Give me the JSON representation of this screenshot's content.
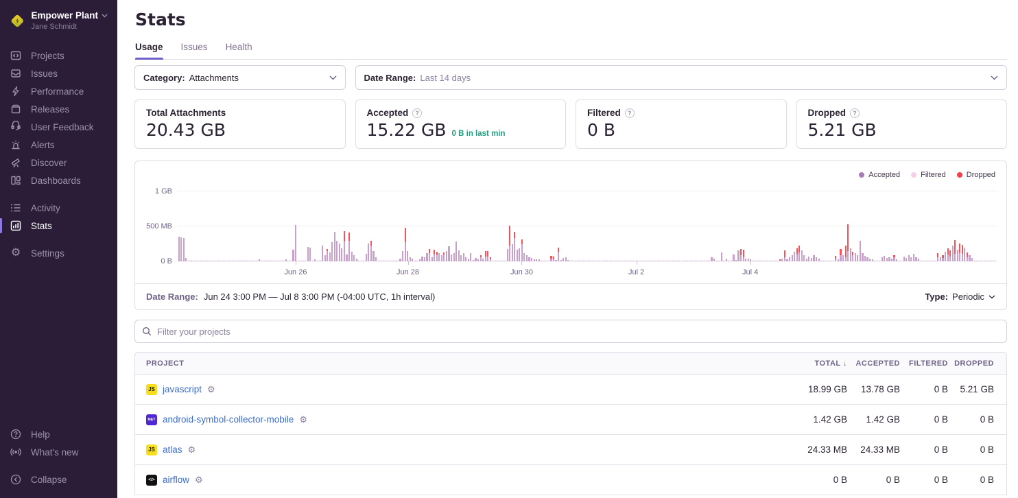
{
  "sidebar": {
    "org_name": "Empower Plant",
    "user_name": "Jane Schmidt",
    "items": [
      {
        "label": "Projects"
      },
      {
        "label": "Issues"
      },
      {
        "label": "Performance"
      },
      {
        "label": "Releases"
      },
      {
        "label": "User Feedback"
      },
      {
        "label": "Alerts"
      },
      {
        "label": "Discover"
      },
      {
        "label": "Dashboards"
      },
      {
        "label": "Activity"
      },
      {
        "label": "Stats",
        "active": true
      },
      {
        "label": "Settings"
      }
    ],
    "footer_items": [
      {
        "label": "Help"
      },
      {
        "label": "What's new"
      },
      {
        "label": "Collapse"
      }
    ]
  },
  "header": {
    "title": "Stats",
    "tabs": [
      {
        "label": "Usage",
        "active": true
      },
      {
        "label": "Issues"
      },
      {
        "label": "Health"
      }
    ]
  },
  "filters": {
    "category_label": "Category:",
    "category_value": "Attachments",
    "date_range_label": "Date Range:",
    "date_range_value": "Last 14 days"
  },
  "cards": [
    {
      "label": "Total Attachments",
      "value": "20.43 GB"
    },
    {
      "label": "Accepted",
      "value": "15.22 GB",
      "sub": "0 B in last min"
    },
    {
      "label": "Filtered",
      "value": "0 B"
    },
    {
      "label": "Dropped",
      "value": "5.21 GB"
    }
  ],
  "icons": {
    "help_glyph": "?",
    "gear_glyph": "⚙",
    "sort_desc_glyph": "↓"
  },
  "chart": {
    "type": "bar",
    "stacked": true,
    "unit": "MB",
    "ymax_mb": 1000,
    "legend": [
      {
        "label": "Accepted",
        "color": "#a87cb8"
      },
      {
        "label": "Filtered",
        "color": "#f6d1e6"
      },
      {
        "label": "Dropped",
        "color": "#f1424a"
      }
    ],
    "bar_color_accepted": "#c9a0cc",
    "bar_color_dropped": "#f1545b",
    "y_ticks": [
      {
        "label": "1 GB",
        "mb": 1000
      },
      {
        "label": "500 MB",
        "mb": 500
      },
      {
        "label": "0 B",
        "mb": 0
      }
    ],
    "x_ticks": [
      {
        "label": "Jun 26",
        "pct": 14.4
      },
      {
        "label": "Jun 28",
        "pct": 28.1
      },
      {
        "label": "Jun 30",
        "pct": 42.0
      },
      {
        "label": "Jul 2",
        "pct": 56.0
      },
      {
        "label": "Jul 4",
        "pct": 69.9
      }
    ],
    "bar_segments": [
      {
        "a": 355
      },
      {
        "a": 345
      },
      {
        "a": 330
      },
      {
        "a": 45
      },
      {
        "n": 29,
        "a": 6
      },
      {
        "a": 25
      },
      {
        "n": 10,
        "a": 6
      },
      {
        "a": 30
      },
      {
        "n": 2,
        "a": 8
      },
      {
        "a": 165
      },
      {
        "a": 520
      },
      {
        "n": 4,
        "a": 8
      },
      {
        "a": 210
      },
      {
        "a": 195
      },
      {
        "a": 8
      },
      {
        "a": 30
      },
      {
        "n": 2,
        "a": 8
      },
      {
        "a": 230
      },
      {
        "a": 90
      },
      {
        "a": 150,
        "d": 30
      },
      {
        "a": 130
      },
      {
        "a": 275
      },
      {
        "a": 420
      },
      {
        "a": 290
      },
      {
        "a": 255
      },
      {
        "a": 185
      },
      {
        "a": 280,
        "d": 150
      },
      {
        "a": 95
      },
      {
        "a": 290,
        "d": 120
      },
      {
        "a": 140
      },
      {
        "a": 90
      },
      {
        "a": 40
      },
      {
        "n": 3,
        "a": 8
      },
      {
        "a": 110
      },
      {
        "a": 255
      },
      {
        "a": 230,
        "d": 60
      },
      {
        "a": 150
      },
      {
        "a": 60
      },
      {
        "n": 9,
        "a": 8
      },
      {
        "a": 35
      },
      {
        "a": 150
      },
      {
        "a": 270,
        "d": 210
      },
      {
        "a": 150
      },
      {
        "a": 60
      },
      {
        "a": 35
      },
      {
        "n": 2,
        "a": 10
      },
      {
        "a": 30
      },
      {
        "a": 70
      },
      {
        "a": 55
      },
      {
        "a": 115
      },
      {
        "a": 120,
        "d": 60
      },
      {
        "a": 60
      },
      {
        "a": 95,
        "d": 75
      },
      {
        "a": 90,
        "d": 50
      },
      {
        "a": 115
      },
      {
        "a": 85
      },
      {
        "a": 95,
        "d": 35
      },
      {
        "a": 145
      },
      {
        "a": 215
      },
      {
        "a": 100
      },
      {
        "a": 115
      },
      {
        "a": 280
      },
      {
        "a": 160
      },
      {
        "a": 90
      },
      {
        "a": 115
      },
      {
        "a": 55
      },
      {
        "a": 35
      },
      {
        "a": 120
      },
      {
        "a": 15
      },
      {
        "a": 45
      },
      {
        "a": 25
      },
      {
        "a": 60,
        "d": 30
      },
      {
        "a": 35
      },
      {
        "a": 70,
        "d": 80
      },
      {
        "a": 70,
        "d": 80
      },
      {
        "a": 30,
        "d": 30
      },
      {
        "n": 6,
        "a": 10
      },
      {
        "a": 180
      },
      {
        "a": 230,
        "d": 280
      },
      {
        "a": 250
      },
      {
        "a": 330,
        "d": 90
      },
      {
        "a": 170
      },
      {
        "a": 185
      },
      {
        "a": 250,
        "d": 60
      },
      {
        "a": 120
      },
      {
        "a": 90
      },
      {
        "a": 55
      },
      {
        "a": 45
      },
      {
        "a": 30
      },
      {
        "a": 30
      },
      {
        "a": 25
      },
      {
        "n": 4,
        "a": 10
      },
      {
        "a": 40,
        "d": 35
      },
      {
        "a": 30,
        "d": 35
      },
      {
        "a": 20
      },
      {
        "a": 135,
        "d": 65
      },
      {
        "a": 15
      },
      {
        "a": 45
      },
      {
        "a": 55
      },
      {
        "a": 20
      },
      {
        "n": 58,
        "a": 6
      },
      {
        "a": 60
      },
      {
        "a": 40
      },
      {
        "n": 2,
        "a": 6
      },
      {
        "a": 130
      },
      {
        "a": 6
      },
      {
        "a": 40
      },
      {
        "n": 2,
        "a": 6
      },
      {
        "a": 100
      },
      {
        "a": 15
      },
      {
        "a": 160
      },
      {
        "a": 90,
        "d": 85
      },
      {
        "a": 60,
        "d": 105
      },
      {
        "a": 40
      },
      {
        "a": 35
      },
      {
        "a": 25
      },
      {
        "n": 11,
        "a": 6
      },
      {
        "a": 10,
        "d": 15
      },
      {
        "a": 40
      },
      {
        "a": 60,
        "d": 95
      },
      {
        "a": 25
      },
      {
        "a": 55
      },
      {
        "a": 90
      },
      {
        "a": 140
      },
      {
        "a": 100,
        "d": 90
      },
      {
        "a": 130,
        "d": 100
      },
      {
        "a": 160
      },
      {
        "a": 90
      },
      {
        "a": 40
      },
      {
        "a": 70
      },
      {
        "a": 50
      },
      {
        "a": 90
      },
      {
        "a": 60
      },
      {
        "a": 35
      },
      {
        "n": 6,
        "a": 8
      },
      {
        "a": 35,
        "d": 40
      },
      {
        "a": 25
      },
      {
        "a": 90,
        "d": 90
      },
      {
        "a": 90
      },
      {
        "a": 60,
        "d": 170
      },
      {
        "a": 150,
        "d": 380
      },
      {
        "a": 190
      },
      {
        "a": 85,
        "d": 55
      },
      {
        "a": 120
      },
      {
        "a": 90
      },
      {
        "a": 290
      },
      {
        "a": 120
      },
      {
        "a": 80
      },
      {
        "a": 60
      },
      {
        "a": 40
      },
      {
        "a": 30
      },
      {
        "n": 3,
        "a": 8
      },
      {
        "a": 55
      },
      {
        "a": 75
      },
      {
        "a": 45
      },
      {
        "a": 60
      },
      {
        "a": 35
      },
      {
        "a": 55,
        "d": 35
      },
      {
        "a": 30
      },
      {
        "n": 2,
        "a": 8
      },
      {
        "a": 65
      },
      {
        "a": 45
      },
      {
        "a": 85
      },
      {
        "a": 60
      },
      {
        "a": 110
      },
      {
        "a": 55
      },
      {
        "a": 35
      },
      {
        "n": 7,
        "a": 8
      },
      {
        "a": 60,
        "d": 60
      },
      {
        "a": 60
      },
      {
        "a": 45,
        "d": 45
      },
      {
        "a": 140
      },
      {
        "a": 100,
        "d": 90
      },
      {
        "a": 70,
        "d": 90
      },
      {
        "a": 230
      },
      {
        "a": 110,
        "d": 190
      },
      {
        "a": 170
      },
      {
        "a": 120,
        "d": 140
      },
      {
        "a": 110,
        "d": 130
      },
      {
        "a": 200
      },
      {
        "a": 60,
        "d": 70
      },
      {
        "a": 90
      },
      {
        "a": 50
      },
      {
        "n": 9,
        "a": 8
      }
    ]
  },
  "chart_footer": {
    "date_range_label": "Date Range:",
    "date_range_value": "Jun 24 3:00 PM — Jul 8 3:00 PM (-04:00 UTC, 1h interval)",
    "type_label": "Type:",
    "type_value": "Periodic"
  },
  "search": {
    "placeholder": "Filter your projects"
  },
  "table": {
    "columns": {
      "project": "PROJECT",
      "total": "TOTAL",
      "accepted": "ACCEPTED",
      "filtered": "FILTERED",
      "dropped": "DROPPED"
    },
    "rows": [
      {
        "name": "javascript",
        "badge_text": "JS",
        "badge_bg": "#f7df1e",
        "badge_fg": "#111111",
        "total": "18.99 GB",
        "accepted": "13.78 GB",
        "filtered": "0 B",
        "dropped": "5.21 GB"
      },
      {
        "name": "android-symbol-collector-mobile",
        "badge_text": "NET",
        "badge_bg": "#5127d5",
        "badge_fg": "#ffffff",
        "total": "1.42 GB",
        "accepted": "1.42 GB",
        "filtered": "0 B",
        "dropped": "0 B"
      },
      {
        "name": "atlas",
        "badge_text": "JS",
        "badge_bg": "#f7df1e",
        "badge_fg": "#111111",
        "total": "24.33 MB",
        "accepted": "24.33 MB",
        "filtered": "0 B",
        "dropped": "0 B"
      },
      {
        "name": "airflow",
        "badge_text": "</>",
        "badge_bg": "#111111",
        "badge_fg": "#ffffff",
        "total": "0 B",
        "accepted": "0 B",
        "filtered": "0 B",
        "dropped": "0 B"
      }
    ]
  }
}
